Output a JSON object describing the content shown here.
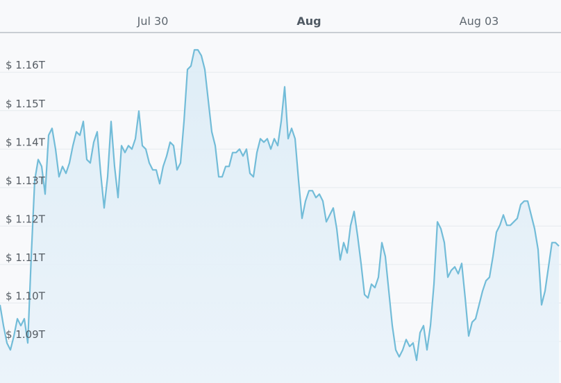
{
  "chart_data": {
    "type": "area",
    "categories": [
      null,
      null,
      null,
      null,
      null,
      null,
      null,
      null,
      null,
      null,
      null,
      null,
      null,
      null,
      null,
      null,
      null,
      null,
      null,
      null,
      null,
      null,
      null,
      null,
      null,
      null,
      null,
      null,
      null,
      null,
      null,
      null,
      null,
      null,
      null,
      null,
      null,
      null,
      null,
      null,
      null,
      null,
      null,
      null,
      "Jul 30",
      null,
      null,
      null,
      null,
      null,
      null,
      null,
      null,
      null,
      null,
      null,
      null,
      null,
      null,
      null,
      null,
      null,
      null,
      null,
      null,
      null,
      null,
      null,
      null,
      null,
      null,
      null,
      null,
      null,
      null,
      null,
      null,
      null,
      null,
      null,
      null,
      null,
      null,
      null,
      null,
      null,
      null,
      null,
      null,
      "Aug",
      null,
      null,
      null,
      null,
      null,
      null,
      null,
      null,
      null,
      null,
      null,
      null,
      null,
      null,
      null,
      null,
      null,
      null,
      null,
      null,
      null,
      null,
      null,
      null,
      null,
      null,
      null,
      null,
      null,
      null,
      null,
      null,
      null,
      null,
      null,
      null,
      null,
      null,
      null,
      null,
      null,
      null,
      null,
      null,
      null,
      null,
      null,
      null,
      "Aug 03",
      null,
      null,
      null,
      null,
      null,
      null,
      null,
      null,
      null,
      null,
      null,
      null,
      null,
      null,
      null,
      null,
      null,
      null,
      null,
      null,
      null,
      null,
      null
    ],
    "values": [
      1.0995,
      1.0941,
      1.0896,
      1.0878,
      1.0914,
      1.0959,
      1.0941,
      1.0959,
      1.0896,
      1.1121,
      1.1319,
      1.1373,
      1.1355,
      1.1283,
      1.1436,
      1.1454,
      1.14,
      1.1328,
      1.1355,
      1.1337,
      1.1364,
      1.1409,
      1.1445,
      1.1436,
      1.1472,
      1.1373,
      1.1364,
      1.1418,
      1.1445,
      1.1337,
      1.1247,
      1.1328,
      1.1472,
      1.1355,
      1.1274,
      1.1409,
      1.1391,
      1.1409,
      1.14,
      1.1427,
      1.1499,
      1.1409,
      1.14,
      1.1364,
      1.1346,
      1.1346,
      1.131,
      1.1355,
      1.1382,
      1.1418,
      1.1409,
      1.1346,
      1.1364,
      1.1472,
      1.1607,
      1.1616,
      1.1658,
      1.1658,
      1.1643,
      1.1607,
      1.1526,
      1.1445,
      1.1409,
      1.1328,
      1.1328,
      1.1355,
      1.1355,
      1.1391,
      1.1391,
      1.14,
      1.1382,
      1.14,
      1.1337,
      1.1328,
      1.1391,
      1.1427,
      1.1418,
      1.1427,
      1.14,
      1.1427,
      1.1409,
      1.1472,
      1.1562,
      1.1427,
      1.1454,
      1.1427,
      1.1319,
      1.122,
      1.1265,
      1.1292,
      1.1292,
      1.1274,
      1.1283,
      1.1265,
      1.1211,
      1.1229,
      1.1247,
      1.1193,
      1.1112,
      1.1157,
      1.113,
      1.1202,
      1.1238,
      1.1175,
      1.1103,
      1.1022,
      1.1013,
      1.1049,
      1.104,
      1.1067,
      1.1157,
      1.1121,
      1.1031,
      1.0941,
      1.0878,
      1.086,
      1.0878,
      1.0905,
      1.0887,
      1.0896,
      1.0851,
      1.0923,
      1.0941,
      1.0878,
      1.0941,
      1.1049,
      1.1211,
      1.1193,
      1.1157,
      1.1067,
      1.1085,
      1.1094,
      1.1076,
      1.1103,
      1.1013,
      1.0914,
      1.095,
      1.0959,
      1.0995,
      1.1031,
      1.1058,
      1.1067,
      1.1121,
      1.1184,
      1.1202,
      1.1229,
      1.1202,
      1.1202,
      1.1211,
      1.122,
      1.1256,
      1.1265,
      1.1265,
      1.1229,
      1.1193,
      1.1139,
      1.0995,
      1.1031,
      1.1094,
      1.1157,
      1.1157,
      1.1148
    ],
    "color": "#72bcd8",
    "ylim": [
      1.0792,
      1.1703
    ],
    "yticks": [
      {
        "value": 1.09,
        "label": "$ 1.09T"
      },
      {
        "value": 1.1,
        "label": "$ 1.10T"
      },
      {
        "value": 1.11,
        "label": "$ 1.11T"
      },
      {
        "value": 1.12,
        "label": "$ 1.12T"
      },
      {
        "value": 1.13,
        "label": "$ 1.13T"
      },
      {
        "value": 1.14,
        "label": "$ 1.14T"
      },
      {
        "value": 1.15,
        "label": "$ 1.15T"
      },
      {
        "value": 1.16,
        "label": "$ 1.16T"
      }
    ],
    "grid": true
  }
}
